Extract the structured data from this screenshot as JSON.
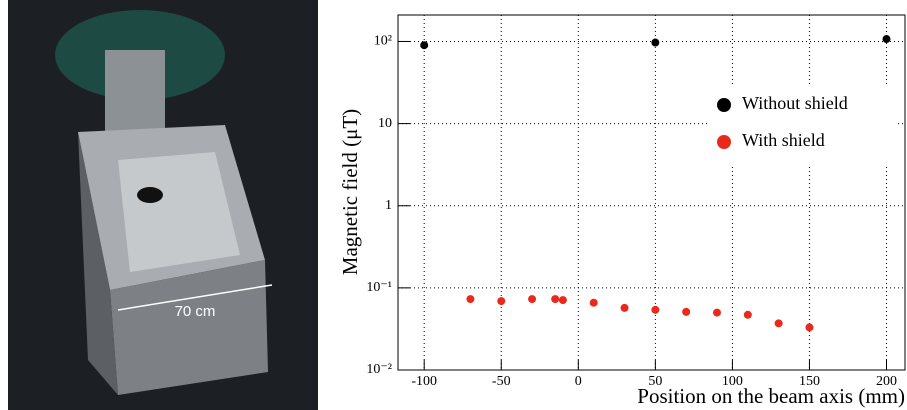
{
  "photo": {
    "label": "70 cm"
  },
  "chart_data": {
    "type": "scatter",
    "xlabel": "Position on the beam axis (mm)",
    "ylabel": "Magnetic field (μT)",
    "xlim": [
      -117,
      212
    ],
    "xticks": [
      -100,
      -50,
      0,
      50,
      100,
      150,
      200
    ],
    "ylim": [
      0.01,
      210
    ],
    "ylog": true,
    "yticks": [
      {
        "value": 0.01,
        "label": "10⁻²"
      },
      {
        "value": 0.1,
        "label": "10⁻¹"
      },
      1,
      10,
      {
        "value": 100,
        "label": "10²"
      }
    ],
    "grid": true,
    "legend": "right",
    "series": [
      {
        "name": "Without shield",
        "color": "#000000",
        "x": [
          -100,
          50,
          200
        ],
        "values": [
          90,
          97,
          107
        ]
      },
      {
        "name": "With shield",
        "color": "#e8291c",
        "x": [
          -70,
          -50,
          -30,
          -15,
          -10,
          10,
          30,
          50,
          70,
          90,
          110,
          130,
          150
        ],
        "values": [
          0.073,
          0.069,
          0.073,
          0.073,
          0.071,
          0.066,
          0.057,
          0.054,
          0.051,
          0.05,
          0.047,
          0.037,
          0.033
        ]
      }
    ]
  }
}
